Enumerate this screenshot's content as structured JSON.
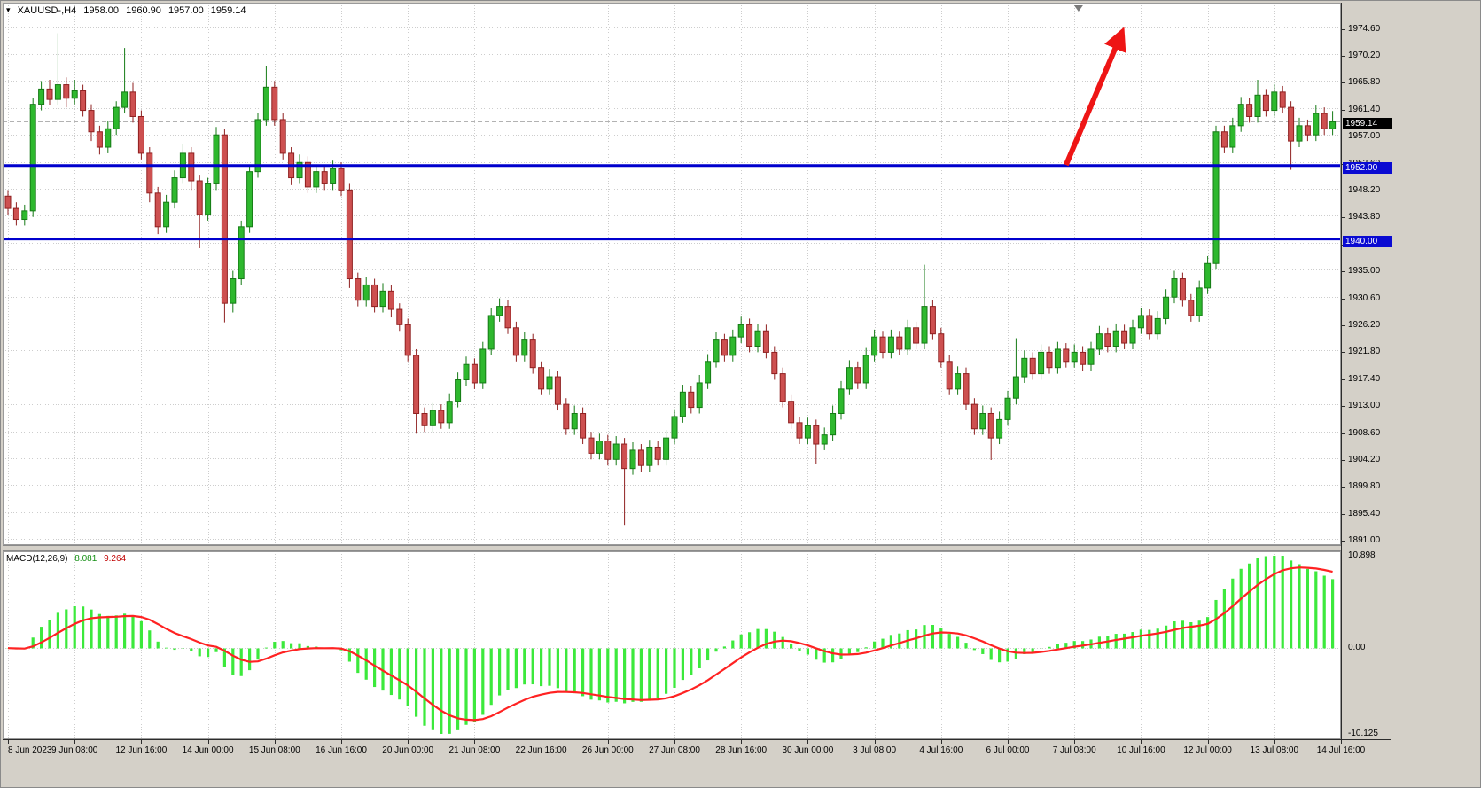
{
  "header": {
    "symbol": "XAUUSD-,H4",
    "open": "1958.00",
    "high": "1960.90",
    "low": "1957.00",
    "close": "1959.14"
  },
  "chart_data": {
    "type": "candlestick",
    "symbol": "XAUUSD-",
    "timeframe": "H4",
    "bars_per_label": 8,
    "x_labels": [
      "8 Jun 2023",
      "9 Jun 08:00",
      "12 Jun 16:00",
      "14 Jun 00:00",
      "15 Jun 08:00",
      "16 Jun 16:00",
      "20 Jun 00:00",
      "21 Jun 08:00",
      "22 Jun 16:00",
      "26 Jun 00:00",
      "27 Jun 08:00",
      "28 Jun 16:00",
      "30 Jun 00:00",
      "3 Jul 08:00",
      "4 Jul 16:00",
      "6 Jul 00:00",
      "7 Jul 08:00",
      "10 Jul 16:00",
      "12 Jul 00:00",
      "13 Jul 08:00",
      "14 Jul 16:00"
    ],
    "price_ticks": [
      "1974.60",
      "1970.20",
      "1965.80",
      "1961.40",
      "1957.00",
      "1952.60",
      "1948.20",
      "1943.80",
      "1939.40",
      "1935.00",
      "1930.60",
      "1926.20",
      "1921.80",
      "1917.40",
      "1913.00",
      "1908.60",
      "1904.20",
      "1899.80",
      "1895.40",
      "1891.00"
    ],
    "ylim": [
      1890.0,
      1978.6
    ],
    "candles": [
      [
        1947.0,
        1948.0,
        1944.0,
        1945.0
      ],
      [
        1945.0,
        1946.0,
        1942.2,
        1943.2
      ],
      [
        1943.2,
        1945.6,
        1942.2,
        1944.6
      ],
      [
        1944.6,
        1963.0,
        1943.6,
        1962.0
      ],
      [
        1962.0,
        1965.8,
        1961.0,
        1964.5
      ],
      [
        1964.5,
        1966.0,
        1961.8,
        1962.8
      ],
      [
        1962.8,
        1973.6,
        1961.8,
        1965.2
      ],
      [
        1965.2,
        1966.4,
        1961.5,
        1963.0
      ],
      [
        1963.0,
        1966.0,
        1962.0,
        1964.2
      ],
      [
        1964.2,
        1965.2,
        1960.0,
        1961.0
      ],
      [
        1961.0,
        1962.0,
        1956.0,
        1957.5
      ],
      [
        1957.5,
        1958.5,
        1953.8,
        1955.0
      ],
      [
        1955.0,
        1959.2,
        1954.0,
        1958.0
      ],
      [
        1958.0,
        1962.5,
        1957.0,
        1961.5
      ],
      [
        1961.5,
        1971.2,
        1960.5,
        1964.0
      ],
      [
        1964.0,
        1965.5,
        1959.0,
        1960.0
      ],
      [
        1960.0,
        1961.0,
        1953.0,
        1954.0
      ],
      [
        1954.0,
        1955.0,
        1946.0,
        1947.5
      ],
      [
        1947.5,
        1948.5,
        1940.8,
        1942.0
      ],
      [
        1942.0,
        1947.2,
        1941.0,
        1946.0
      ],
      [
        1946.0,
        1951.2,
        1945.0,
        1950.0
      ],
      [
        1950.0,
        1955.5,
        1949.0,
        1954.0
      ],
      [
        1954.0,
        1955.0,
        1948.0,
        1949.5
      ],
      [
        1949.5,
        1950.5,
        1938.5,
        1944.0
      ],
      [
        1944.0,
        1950.0,
        1943.0,
        1949.0
      ],
      [
        1949.0,
        1958.3,
        1948.0,
        1957.0
      ],
      [
        1957.0,
        1958.0,
        1926.4,
        1929.5
      ],
      [
        1929.5,
        1934.8,
        1928.0,
        1933.5
      ],
      [
        1933.5,
        1943.0,
        1932.5,
        1942.0
      ],
      [
        1942.0,
        1952.0,
        1941.0,
        1951.0
      ],
      [
        1951.0,
        1960.5,
        1950.0,
        1959.5
      ],
      [
        1959.5,
        1968.3,
        1958.5,
        1964.8
      ],
      [
        1964.8,
        1965.8,
        1958.5,
        1959.5
      ],
      [
        1959.5,
        1960.5,
        1953.0,
        1954.0
      ],
      [
        1954.0,
        1955.0,
        1948.8,
        1950.0
      ],
      [
        1950.0,
        1953.8,
        1949.0,
        1952.5
      ],
      [
        1952.5,
        1953.5,
        1947.5,
        1948.5
      ],
      [
        1948.5,
        1952.2,
        1947.5,
        1951.0
      ],
      [
        1951.0,
        1952.0,
        1948.0,
        1949.0
      ],
      [
        1949.0,
        1952.8,
        1948.0,
        1951.5
      ],
      [
        1951.5,
        1952.5,
        1947.0,
        1948.0
      ],
      [
        1948.0,
        1949.0,
        1932.0,
        1933.5
      ],
      [
        1933.5,
        1934.5,
        1929.0,
        1930.0
      ],
      [
        1930.0,
        1933.8,
        1929.0,
        1932.5
      ],
      [
        1932.5,
        1933.5,
        1928.0,
        1929.0
      ],
      [
        1929.0,
        1932.8,
        1928.0,
        1931.5
      ],
      [
        1931.5,
        1932.5,
        1927.2,
        1928.5
      ],
      [
        1928.5,
        1929.5,
        1925.0,
        1926.0
      ],
      [
        1926.0,
        1927.0,
        1920.0,
        1921.0
      ],
      [
        1921.0,
        1922.0,
        1908.2,
        1911.5
      ],
      [
        1911.5,
        1912.5,
        1908.5,
        1909.5
      ],
      [
        1909.5,
        1913.2,
        1908.5,
        1912.0
      ],
      [
        1912.0,
        1913.0,
        1909.0,
        1910.0
      ],
      [
        1910.0,
        1914.8,
        1909.0,
        1913.5
      ],
      [
        1913.5,
        1918.2,
        1912.5,
        1917.0
      ],
      [
        1917.0,
        1920.8,
        1916.0,
        1919.5
      ],
      [
        1919.5,
        1920.5,
        1915.5,
        1916.5
      ],
      [
        1916.5,
        1923.2,
        1915.5,
        1922.0
      ],
      [
        1922.0,
        1928.8,
        1921.0,
        1927.5
      ],
      [
        1927.5,
        1930.3,
        1926.5,
        1929.0
      ],
      [
        1929.0,
        1930.0,
        1924.5,
        1925.5
      ],
      [
        1925.5,
        1926.5,
        1920.0,
        1921.0
      ],
      [
        1921.0,
        1924.8,
        1920.0,
        1923.5
      ],
      [
        1923.5,
        1924.5,
        1918.0,
        1919.0
      ],
      [
        1919.0,
        1920.0,
        1914.5,
        1915.5
      ],
      [
        1915.5,
        1918.8,
        1914.5,
        1917.5
      ],
      [
        1917.5,
        1918.5,
        1912.0,
        1913.0
      ],
      [
        1913.0,
        1914.0,
        1908.0,
        1909.0
      ],
      [
        1909.0,
        1912.8,
        1908.0,
        1911.5
      ],
      [
        1911.5,
        1912.5,
        1906.5,
        1907.5
      ],
      [
        1907.5,
        1908.5,
        1904.0,
        1905.0
      ],
      [
        1905.0,
        1908.2,
        1904.0,
        1907.0
      ],
      [
        1907.0,
        1908.0,
        1903.0,
        1904.0
      ],
      [
        1904.0,
        1907.8,
        1903.0,
        1906.5
      ],
      [
        1906.5,
        1907.5,
        1893.3,
        1902.5
      ],
      [
        1902.5,
        1906.8,
        1901.5,
        1905.5
      ],
      [
        1905.5,
        1906.5,
        1902.0,
        1903.0
      ],
      [
        1903.0,
        1907.2,
        1902.0,
        1906.0
      ],
      [
        1906.0,
        1907.0,
        1903.0,
        1904.0
      ],
      [
        1904.0,
        1908.8,
        1903.0,
        1907.5
      ],
      [
        1907.5,
        1912.2,
        1906.5,
        1911.0
      ],
      [
        1911.0,
        1916.2,
        1910.0,
        1915.0
      ],
      [
        1915.0,
        1916.0,
        1911.5,
        1912.5
      ],
      [
        1912.5,
        1917.8,
        1911.5,
        1916.5
      ],
      [
        1916.5,
        1921.2,
        1915.5,
        1920.0
      ],
      [
        1920.0,
        1924.8,
        1919.0,
        1923.5
      ],
      [
        1923.5,
        1924.5,
        1920.0,
        1921.0
      ],
      [
        1921.0,
        1925.2,
        1920.0,
        1924.0
      ],
      [
        1924.0,
        1927.3,
        1923.0,
        1926.0
      ],
      [
        1926.0,
        1927.0,
        1921.5,
        1922.5
      ],
      [
        1922.5,
        1926.2,
        1921.5,
        1925.0
      ],
      [
        1925.0,
        1926.0,
        1920.5,
        1921.5
      ],
      [
        1921.5,
        1922.5,
        1917.0,
        1918.0
      ],
      [
        1918.0,
        1919.0,
        1912.5,
        1913.5
      ],
      [
        1913.5,
        1914.5,
        1909.0,
        1910.0
      ],
      [
        1910.0,
        1911.0,
        1906.5,
        1907.5
      ],
      [
        1907.5,
        1910.8,
        1906.5,
        1909.5
      ],
      [
        1909.5,
        1910.5,
        1903.2,
        1906.5
      ],
      [
        1906.5,
        1909.2,
        1905.5,
        1908.0
      ],
      [
        1908.0,
        1912.8,
        1907.0,
        1911.5
      ],
      [
        1911.5,
        1916.8,
        1910.5,
        1915.5
      ],
      [
        1915.5,
        1920.2,
        1914.5,
        1919.0
      ],
      [
        1919.0,
        1920.0,
        1915.5,
        1916.5
      ],
      [
        1916.5,
        1922.2,
        1915.5,
        1921.0
      ],
      [
        1921.0,
        1925.2,
        1920.0,
        1924.0
      ],
      [
        1924.0,
        1925.0,
        1920.5,
        1921.5
      ],
      [
        1921.5,
        1925.2,
        1920.5,
        1924.0
      ],
      [
        1924.0,
        1925.0,
        1921.0,
        1922.0
      ],
      [
        1922.0,
        1926.8,
        1921.0,
        1925.5
      ],
      [
        1925.5,
        1926.5,
        1922.0,
        1923.0
      ],
      [
        1923.0,
        1935.8,
        1922.0,
        1929.0
      ],
      [
        1929.0,
        1930.0,
        1923.5,
        1924.5
      ],
      [
        1924.5,
        1925.5,
        1919.0,
        1920.0
      ],
      [
        1920.0,
        1921.0,
        1914.5,
        1915.5
      ],
      [
        1915.5,
        1919.2,
        1914.5,
        1918.0
      ],
      [
        1918.0,
        1919.0,
        1912.0,
        1913.0
      ],
      [
        1913.0,
        1914.0,
        1908.0,
        1909.0
      ],
      [
        1909.0,
        1912.8,
        1908.0,
        1911.5
      ],
      [
        1911.5,
        1912.5,
        1903.9,
        1907.5
      ],
      [
        1907.5,
        1911.8,
        1906.5,
        1910.5
      ],
      [
        1910.5,
        1915.2,
        1909.5,
        1914.0
      ],
      [
        1914.0,
        1923.8,
        1913.0,
        1917.5
      ],
      [
        1917.5,
        1921.8,
        1916.5,
        1920.5
      ],
      [
        1920.5,
        1921.5,
        1917.0,
        1918.0
      ],
      [
        1918.0,
        1922.8,
        1917.0,
        1921.5
      ],
      [
        1921.5,
        1922.5,
        1918.0,
        1919.0
      ],
      [
        1919.0,
        1923.2,
        1918.0,
        1922.0
      ],
      [
        1922.0,
        1923.0,
        1919.0,
        1920.0
      ],
      [
        1920.0,
        1922.8,
        1919.0,
        1921.5
      ],
      [
        1921.5,
        1922.5,
        1918.5,
        1919.5
      ],
      [
        1919.5,
        1923.2,
        1918.5,
        1922.0
      ],
      [
        1922.0,
        1925.8,
        1921.0,
        1924.5
      ],
      [
        1924.5,
        1925.5,
        1921.5,
        1922.5
      ],
      [
        1922.5,
        1926.2,
        1921.5,
        1925.0
      ],
      [
        1925.0,
        1926.0,
        1922.0,
        1923.0
      ],
      [
        1923.0,
        1926.8,
        1922.0,
        1925.5
      ],
      [
        1925.5,
        1928.8,
        1924.5,
        1927.5
      ],
      [
        1927.5,
        1928.5,
        1923.5,
        1924.5
      ],
      [
        1924.5,
        1928.2,
        1923.5,
        1927.0
      ],
      [
        1927.0,
        1931.8,
        1926.0,
        1930.5
      ],
      [
        1930.5,
        1934.8,
        1929.5,
        1933.5
      ],
      [
        1933.5,
        1934.5,
        1929.0,
        1930.0
      ],
      [
        1930.0,
        1931.0,
        1926.5,
        1927.5
      ],
      [
        1927.5,
        1933.2,
        1926.5,
        1932.0
      ],
      [
        1932.0,
        1937.2,
        1931.0,
        1936.0
      ],
      [
        1936.0,
        1958.5,
        1935.0,
        1957.5
      ],
      [
        1957.5,
        1958.5,
        1954.0,
        1955.0
      ],
      [
        1955.0,
        1959.8,
        1954.0,
        1958.5
      ],
      [
        1958.5,
        1963.2,
        1957.5,
        1962.0
      ],
      [
        1962.0,
        1963.0,
        1959.0,
        1960.0
      ],
      [
        1960.0,
        1966.0,
        1959.0,
        1963.5
      ],
      [
        1963.5,
        1964.5,
        1960.0,
        1961.0
      ],
      [
        1961.0,
        1965.3,
        1960.0,
        1964.0
      ],
      [
        1964.0,
        1965.0,
        1960.5,
        1961.5
      ],
      [
        1961.5,
        1962.5,
        1951.3,
        1956.0
      ],
      [
        1956.0,
        1959.8,
        1955.0,
        1958.5
      ],
      [
        1958.5,
        1959.5,
        1956.0,
        1957.0
      ],
      [
        1957.0,
        1961.8,
        1956.0,
        1960.5
      ],
      [
        1960.5,
        1961.5,
        1957.0,
        1958.0
      ],
      [
        1958.0,
        1960.9,
        1957.0,
        1959.14
      ]
    ],
    "levels": [
      {
        "price": 1952.0,
        "label": "1952.00"
      },
      {
        "price": 1940.0,
        "label": "1940.00"
      }
    ],
    "bid": {
      "price": 1959.14,
      "label": "1959.14"
    },
    "arrow": {
      "from_bar": 127.0,
      "from_price": 1952.1,
      "to_bar": 133.6,
      "to_price": 1973.4
    },
    "chart_shift_marker_bar": 128.5,
    "macd": {
      "label": "MACD(12,26,9)",
      "main_value": "8.081",
      "signal_value": "9.264",
      "scale_max": 10.898,
      "scale_min": -10.125,
      "axis_labels": [
        "10.898",
        "0.00",
        "-10.125"
      ]
    }
  },
  "colors": {
    "background": "#d4d0c8",
    "plot_background": "#ffffff",
    "grid": "#cdcdcd",
    "text": "#000000",
    "candle_up": "#2eb82e",
    "candle_up_border": "#157a15",
    "candle_down": "#cd5050",
    "candle_down_border": "#8f2020",
    "level_line": "#0000cd",
    "level_badge": "#0a0ad2",
    "bid_line": "#a8a8a8",
    "bid_badge": "#000000",
    "badge_text": "#ffffff",
    "arrow": "#ee1515",
    "macd_histogram": "#3ce93c",
    "macd_signal": "#ff2222",
    "macd_value_main": "#169016",
    "macd_value_signal": "#c00000",
    "axis_border": "#2c2c2c"
  }
}
